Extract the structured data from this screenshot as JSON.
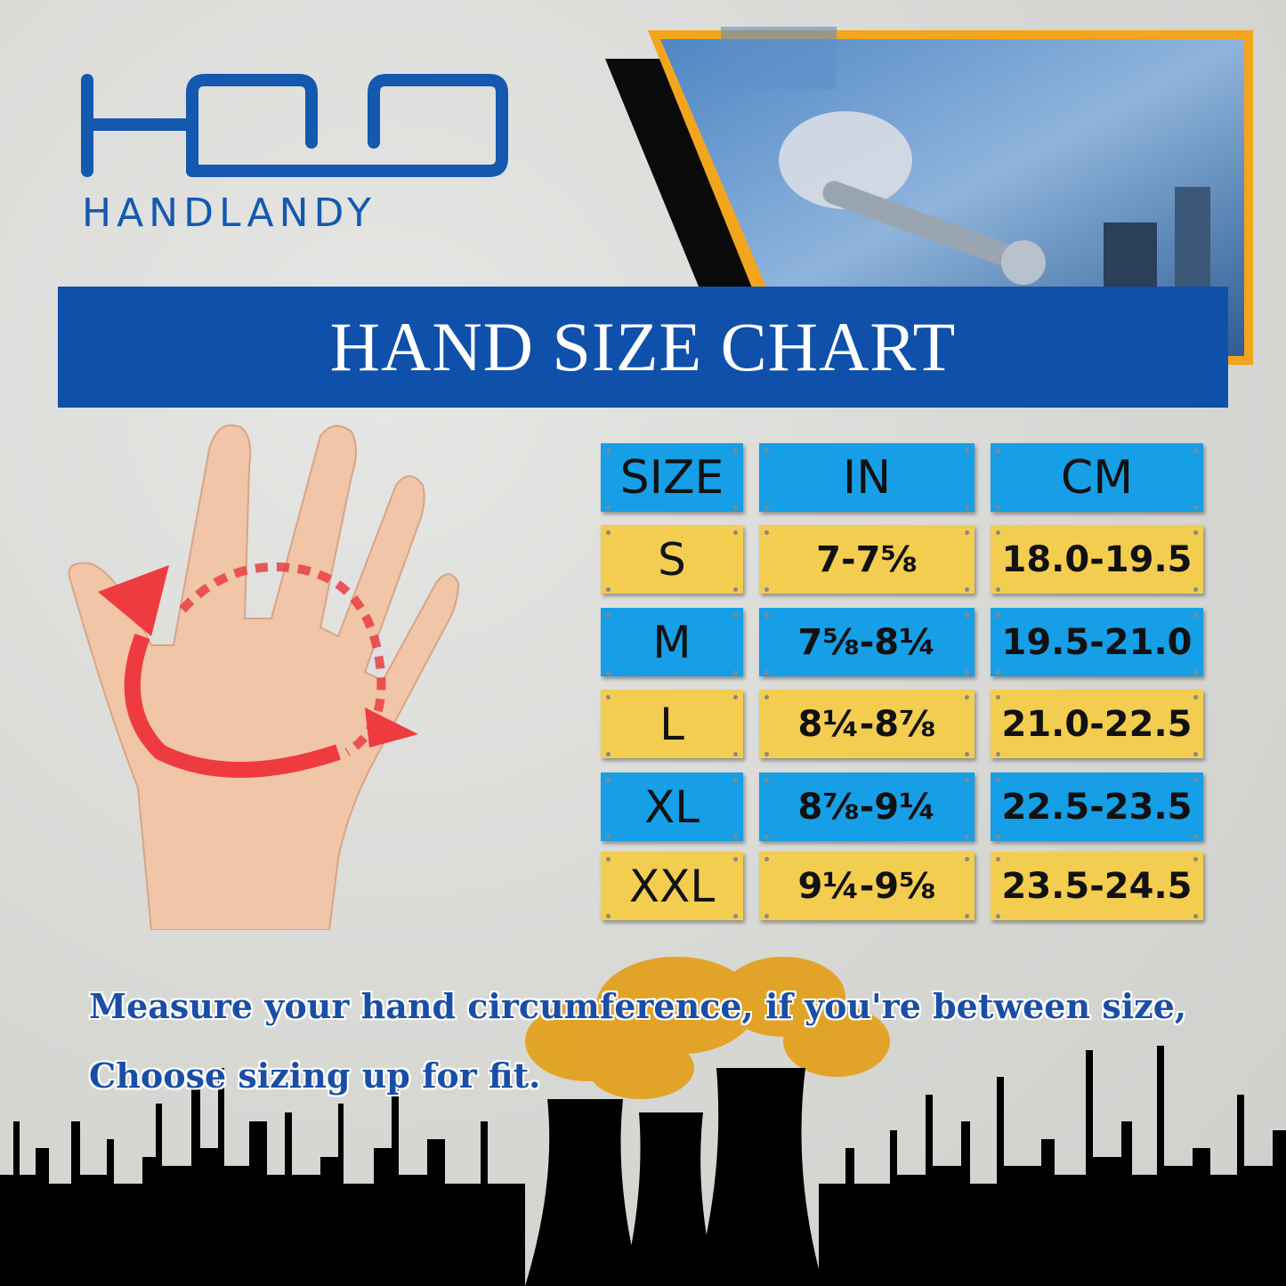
{
  "brand": {
    "logo_text": "HD",
    "name": "HANDLANDY",
    "color": "#1458b0"
  },
  "banner": {
    "title": "HAND SIZE CHART",
    "color": "#0f50ab"
  },
  "table": {
    "headers": [
      "SIZE",
      "IN",
      "CM"
    ],
    "rows": [
      {
        "size": "S",
        "in": "7-7⅝",
        "cm": "18.0-19.5",
        "color": "yellow"
      },
      {
        "size": "M",
        "in": "7⅝-8¼",
        "cm": "19.5-21.0",
        "color": "blue"
      },
      {
        "size": "L",
        "in": "8¼-8⅞",
        "cm": "21.0-22.5",
        "color": "yellow"
      },
      {
        "size": "XL",
        "in": "8⅞-9¼",
        "cm": "22.5-23.5",
        "color": "blue"
      },
      {
        "size": "XXL",
        "in": "9¼-9⅝",
        "cm": "23.5-24.5",
        "color": "yellow"
      }
    ],
    "colors": {
      "blue": "#169fe6",
      "yellow": "#f3cd4f"
    }
  },
  "note": {
    "line1": "Measure your hand circumference, if you're between size,",
    "line2": "Choose sizing up for fit."
  },
  "images": {
    "photo": "worker-tightening-bolt-with-wrench-gloved-hand",
    "hand": "open-palm-with-red-circular-measure-arrow",
    "skyline": "industrial-factory-skyline-with-cooling-towers"
  }
}
